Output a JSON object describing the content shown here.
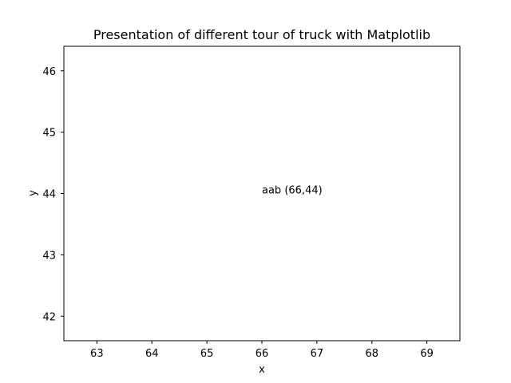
{
  "chart_data": {
    "type": "scatter",
    "title": "Presentation of different tour of truck with Matplotlib",
    "xlabel": "x",
    "ylabel": "y",
    "xlim": [
      62.4,
      69.6
    ],
    "ylim": [
      41.6,
      46.4
    ],
    "xticks": [
      63,
      64,
      65,
      66,
      67,
      68,
      69
    ],
    "yticks": [
      42,
      43,
      44,
      45,
      46
    ],
    "grid": false,
    "annotations": [
      {
        "text": "aab (66,44)",
        "x": 66,
        "y": 44
      }
    ],
    "colors": {
      "axes": "#000000",
      "background": "#ffffff",
      "text": "#000000"
    }
  }
}
